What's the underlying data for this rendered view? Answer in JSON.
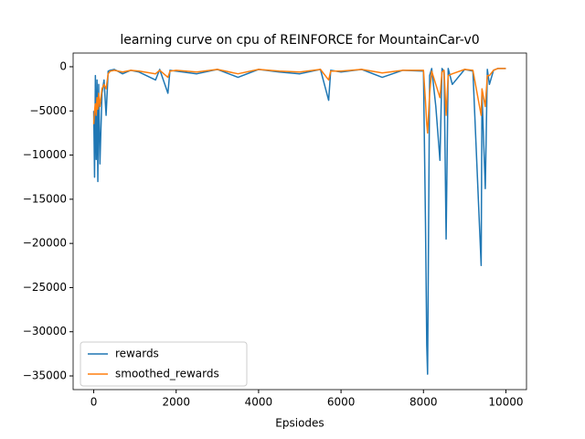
{
  "chart_data": {
    "type": "line",
    "title": "learning curve on cpu of REINFORCE for MountainCar-v0",
    "x_label": "Epsiodes",
    "x": [
      0,
      20,
      40,
      60,
      80,
      100,
      120,
      150,
      200,
      250,
      300,
      350,
      400,
      500,
      700,
      900,
      1100,
      1500,
      1600,
      1800,
      1850,
      2000,
      2500,
      3000,
      3500,
      4000,
      4500,
      5000,
      5500,
      5700,
      5750,
      6000,
      6500,
      7000,
      7500,
      8000,
      8050,
      8080,
      8100,
      8150,
      8200,
      8300,
      8400,
      8450,
      8500,
      8550,
      8600,
      8700,
      9000,
      9200,
      9400,
      9420,
      9500,
      9550,
      9600,
      9700,
      9800,
      10000
    ],
    "series": [
      {
        "name": "rewards",
        "color": "#1f77b4",
        "values": [
          -5000,
          -12500,
          -1000,
          -10500,
          -1500,
          -13000,
          -2000,
          -11000,
          -3000,
          -1500,
          -5500,
          -500,
          -400,
          -300,
          -800,
          -400,
          -600,
          -1500,
          -300,
          -3000,
          -400,
          -500,
          -800,
          -300,
          -1200,
          -300,
          -600,
          -800,
          -300,
          -3800,
          -400,
          -600,
          -300,
          -1200,
          -400,
          -500,
          -18000,
          -31500,
          -34800,
          -1000,
          -200,
          -4500,
          -10600,
          -200,
          -500,
          -19500,
          -200,
          -2000,
          -300,
          -500,
          -22500,
          -3000,
          -13800,
          -300,
          -2000,
          -400,
          -200,
          -200
        ]
      },
      {
        "name": "smoothed_rewards",
        "color": "#ff7f0e",
        "values": [
          -6500,
          -5000,
          -4200,
          -5500,
          -3500,
          -4800,
          -3000,
          -4500,
          -2500,
          -2000,
          -2500,
          -800,
          -500,
          -400,
          -600,
          -400,
          -500,
          -800,
          -400,
          -1200,
          -500,
          -400,
          -600,
          -300,
          -800,
          -300,
          -500,
          -600,
          -300,
          -1500,
          -500,
          -500,
          -300,
          -700,
          -400,
          -400,
          -4000,
          -6500,
          -7500,
          -3000,
          -500,
          -2000,
          -3500,
          -600,
          -400,
          -5500,
          -1000,
          -800,
          -300,
          -400,
          -5500,
          -2500,
          -4500,
          -1000,
          -1000,
          -400,
          -200,
          -200
        ]
      }
    ],
    "xlim": [
      -500,
      10500
    ],
    "ylim": [
      -36550,
      1550
    ],
    "xticks": [
      0,
      2000,
      4000,
      6000,
      8000,
      10000
    ],
    "yticks": [
      0,
      {
        "value": -5000,
        "label": "−5000"
      },
      {
        "value": -10000,
        "label": "−10000"
      },
      {
        "value": -15000,
        "label": "−15000"
      },
      {
        "value": -20000,
        "label": "−20000"
      },
      {
        "value": -25000,
        "label": "−25000"
      },
      {
        "value": -30000,
        "label": "−30000"
      },
      {
        "value": -35000,
        "label": "−35000"
      }
    ],
    "legend": "lower left"
  }
}
